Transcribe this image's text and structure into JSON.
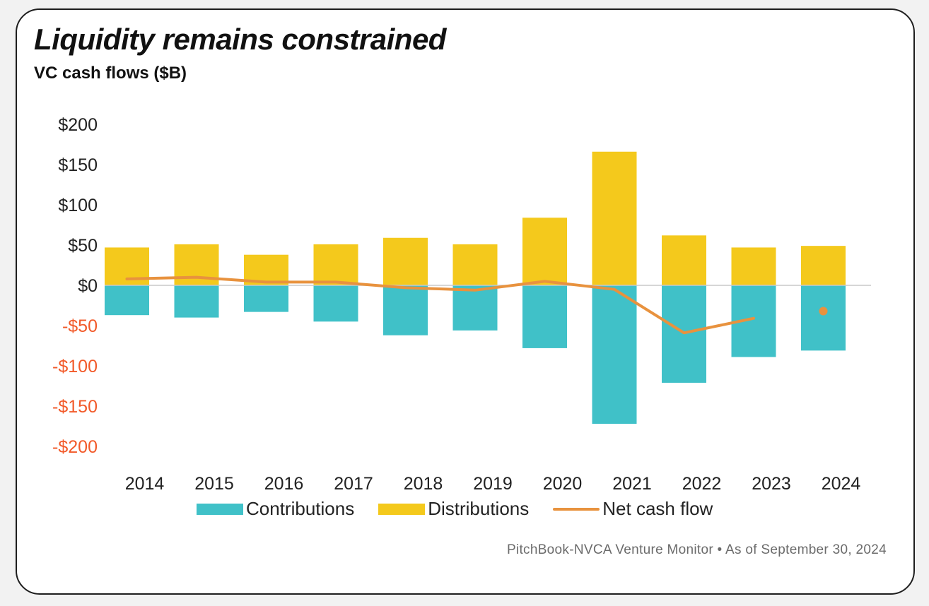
{
  "title": "Liquidity remains constrained",
  "subtitle": "VC cash flows ($B)",
  "source": "PitchBook-NVCA Venture Monitor • As of September 30, 2024",
  "colors": {
    "contributions": "#40c1c8",
    "distributions": "#f4c91c",
    "net": "#e8923e",
    "negative_tick": "#f25a2a",
    "positive_tick": "#222222",
    "zero_line": "#c8c8c8"
  },
  "chart_data": {
    "type": "bar",
    "title": "Liquidity remains constrained",
    "subtitle": "VC cash flows ($B)",
    "categories": [
      "2014",
      "2015",
      "2016",
      "2017",
      "2018",
      "2019",
      "2020",
      "2021",
      "2022",
      "2023",
      "2024"
    ],
    "series": [
      {
        "name": "Contributions",
        "type": "bar",
        "values": [
          -37,
          -40,
          -33,
          -45,
          -62,
          -56,
          -78,
          -172,
          -121,
          -89,
          -81
        ]
      },
      {
        "name": "Distributions",
        "type": "bar",
        "values": [
          47,
          51,
          38,
          51,
          59,
          51,
          84,
          166,
          62,
          47,
          49
        ]
      },
      {
        "name": "Net cash flow",
        "type": "line",
        "values": [
          8,
          10,
          4,
          4,
          -3,
          -6,
          5,
          -5,
          -59,
          -41,
          -32
        ]
      }
    ],
    "yticks": [
      200,
      150,
      100,
      50,
      0,
      -50,
      -100,
      -150,
      -200
    ],
    "ytick_labels": [
      "$200",
      "$150",
      "$100",
      "$50",
      "$0",
      "-$50",
      "-$100",
      "-$150",
      "-$200"
    ],
    "ylim": [
      -200,
      200
    ],
    "xlabel": "",
    "ylabel": "",
    "grid": false,
    "legend": "bottom"
  },
  "legend": [
    {
      "label": "Contributions"
    },
    {
      "label": "Distributions"
    },
    {
      "label": "Net cash flow"
    }
  ]
}
